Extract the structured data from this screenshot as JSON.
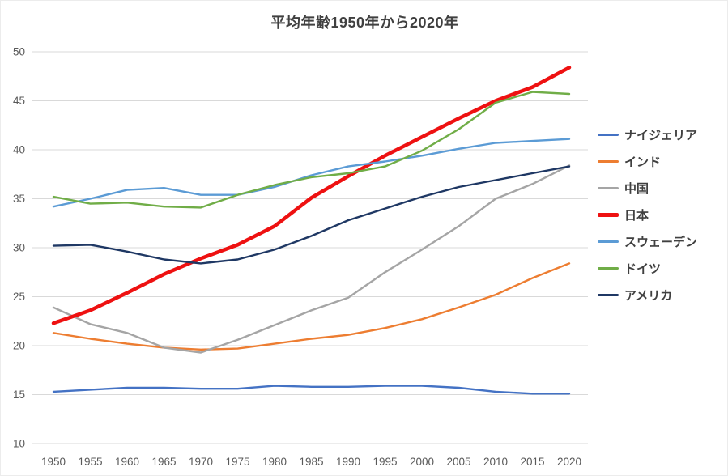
{
  "chart_data": {
    "type": "line",
    "title": "平均年齢1950年から2020年",
    "xlabel": "",
    "ylabel": "",
    "categories": [
      "1950",
      "1955",
      "1960",
      "1965",
      "1970",
      "1975",
      "1980",
      "1985",
      "1990",
      "1995",
      "2000",
      "2005",
      "2010",
      "2015",
      "2020"
    ],
    "series": [
      {
        "name": "ナイジェリア",
        "color": "#4472C4",
        "line_width": 2.4,
        "values": [
          15.3,
          15.5,
          15.7,
          15.7,
          15.6,
          15.6,
          15.9,
          15.8,
          15.8,
          15.9,
          15.9,
          15.7,
          15.3,
          15.1,
          15.1
        ]
      },
      {
        "name": "インド",
        "color": "#ED7D31",
        "line_width": 2.4,
        "values": [
          21.3,
          20.7,
          20.2,
          19.8,
          19.6,
          19.7,
          20.2,
          20.7,
          21.1,
          21.8,
          22.7,
          23.9,
          25.2,
          26.9,
          28.4
        ]
      },
      {
        "name": "中国",
        "color": "#A5A5A5",
        "line_width": 2.4,
        "values": [
          23.9,
          22.2,
          21.3,
          19.8,
          19.3,
          20.6,
          22.1,
          23.6,
          24.9,
          27.5,
          29.8,
          32.2,
          35.0,
          36.5,
          38.4
        ]
      },
      {
        "name": "日本",
        "color": "#EE1111",
        "line_width": 4.5,
        "values": [
          22.3,
          23.6,
          25.4,
          27.3,
          28.9,
          30.3,
          32.2,
          35.1,
          37.3,
          39.4,
          41.3,
          43.2,
          45.0,
          46.4,
          48.4
        ]
      },
      {
        "name": "スウェーデン",
        "color": "#5B9BD5",
        "line_width": 2.4,
        "values": [
          34.2,
          35.0,
          35.9,
          36.1,
          35.4,
          35.4,
          36.2,
          37.4,
          38.3,
          38.8,
          39.4,
          40.1,
          40.7,
          40.9,
          41.1
        ]
      },
      {
        "name": "ドイツ",
        "color": "#70AD47",
        "line_width": 2.4,
        "values": [
          35.2,
          34.5,
          34.6,
          34.2,
          34.1,
          35.4,
          36.4,
          37.2,
          37.6,
          38.3,
          39.9,
          42.1,
          44.8,
          45.9,
          45.7
        ]
      },
      {
        "name": "アメリカ",
        "color": "#1F3864",
        "line_width": 2.4,
        "values": [
          30.2,
          30.3,
          29.6,
          28.8,
          28.4,
          28.8,
          29.8,
          31.2,
          32.8,
          34.0,
          35.2,
          36.2,
          36.9,
          37.6,
          38.3
        ]
      }
    ],
    "ylim": [
      10,
      50
    ],
    "ytick_step": 5,
    "yticks": [
      "10",
      "15",
      "20",
      "25",
      "30",
      "35",
      "40",
      "45",
      "50"
    ],
    "grid": "horizontal",
    "grid_color": "#D9D9D9",
    "axis_label_color": "#595959",
    "legend_position": "right",
    "title_color": "#404040"
  }
}
